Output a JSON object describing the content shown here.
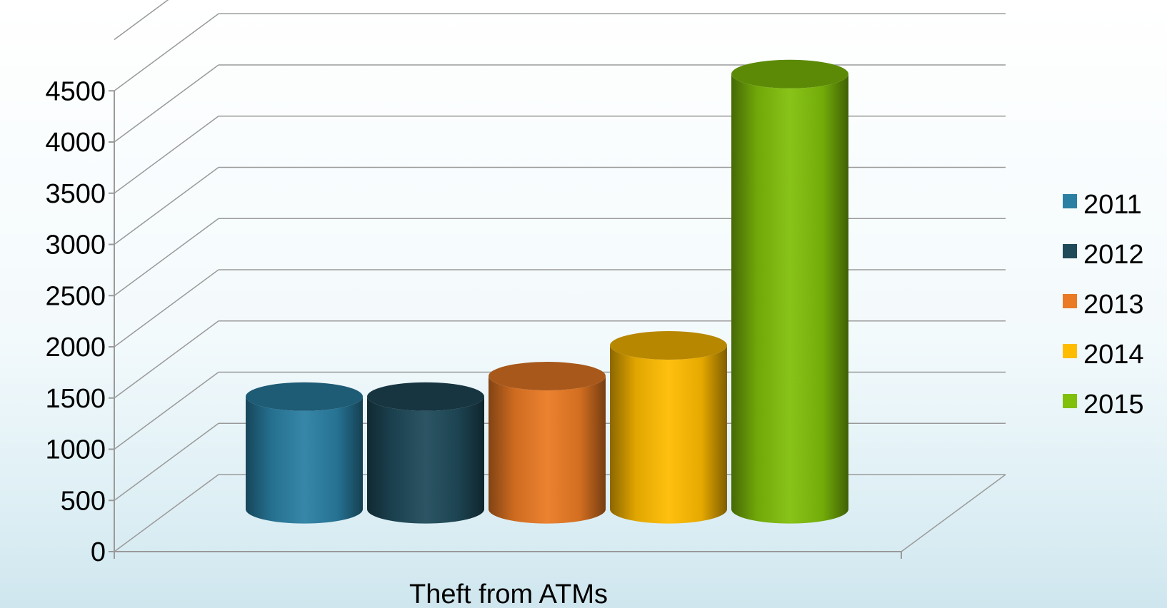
{
  "chart_data": {
    "type": "bar",
    "style": "3d-cylinder",
    "categories": [
      "Theft from ATMs"
    ],
    "series": [
      {
        "name": "2011",
        "values": [
          1100
        ],
        "color": "#2a7fa3"
      },
      {
        "name": "2012",
        "values": [
          1100
        ],
        "color": "#1f4a5a"
      },
      {
        "name": "2013",
        "values": [
          1300
        ],
        "color": "#ea7a24"
      },
      {
        "name": "2014",
        "values": [
          1600
        ],
        "color": "#ffbc00"
      },
      {
        "name": "2015",
        "values": [
          4250
        ],
        "color": "#80bf0a"
      }
    ],
    "ylim": [
      0,
      4500
    ],
    "yticks": [
      "0",
      "500",
      "1000",
      "1500",
      "2000",
      "2500",
      "3000",
      "3500",
      "4000",
      "4500"
    ],
    "grid": true,
    "legend_position": "right"
  }
}
